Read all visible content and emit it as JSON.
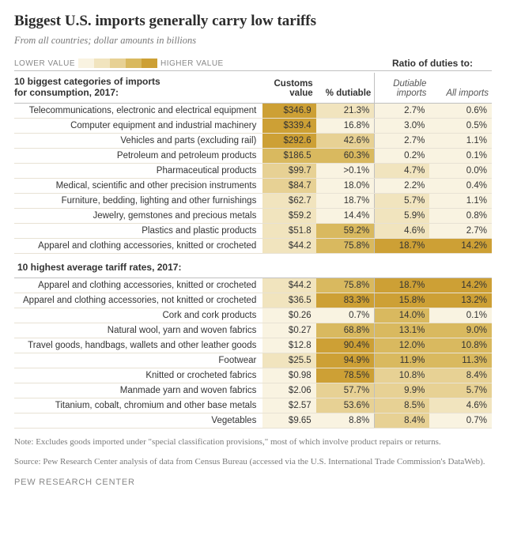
{
  "title": "Biggest U.S. imports generally carry low tariffs",
  "subtitle": "From all countries; dollar amounts in billions",
  "legend": {
    "low_label": "LOWER VALUE",
    "high_label": "HIGHER VALUE",
    "swatches": [
      "#f9f3e1",
      "#f1e4be",
      "#e7d194",
      "#d9b95f",
      "#cda035"
    ],
    "ratio_label": "Ratio of duties to:"
  },
  "columns": {
    "section1_label_a": "10 biggest categories of imports",
    "section1_label_b": "for consumption, 2017:",
    "customs_a": "Customs",
    "customs_b": "value",
    "dutiable": "% dutiable",
    "ratio_dutiable_a": "Dutiable",
    "ratio_dutiable_b": "imports",
    "ratio_all": "All imports",
    "section2_label": "10 highest average tariff rates, 2017:"
  },
  "widths": {
    "label": 280,
    "customs": 60,
    "dutiable": 66,
    "r1": 62,
    "r2": 70
  },
  "section1": [
    {
      "label": "Telecommunications, electronic and electrical equipment",
      "customs": "$346.9",
      "c_customs": "#cda035",
      "dutiable": "21.3%",
      "c_dutiable": "#f1e4be",
      "r1": "2.7%",
      "c_r1": "#f9f3e1",
      "r2": "0.6%",
      "c_r2": "#f9f3e1"
    },
    {
      "label": "Computer equipment and industrial machinery",
      "customs": "$339.4",
      "c_customs": "#cda035",
      "dutiable": "16.8%",
      "c_dutiable": "#f9f3e1",
      "r1": "3.0%",
      "c_r1": "#f9f3e1",
      "r2": "0.5%",
      "c_r2": "#f9f3e1"
    },
    {
      "label": "Vehicles and parts (excluding rail)",
      "customs": "$292.6",
      "c_customs": "#cda035",
      "dutiable": "42.6%",
      "c_dutiable": "#e7d194",
      "r1": "2.7%",
      "c_r1": "#f9f3e1",
      "r2": "1.1%",
      "c_r2": "#f9f3e1"
    },
    {
      "label": "Petroleum and petroleum products",
      "customs": "$186.5",
      "c_customs": "#d9b95f",
      "dutiable": "60.3%",
      "c_dutiable": "#d9b95f",
      "r1": "0.2%",
      "c_r1": "#f9f3e1",
      "r2": "0.1%",
      "c_r2": "#f9f3e1"
    },
    {
      "label": "Pharmaceutical products",
      "customs": "$99.7",
      "c_customs": "#e7d194",
      "dutiable": ">0.1%",
      "c_dutiable": "#f9f3e1",
      "r1": "4.7%",
      "c_r1": "#f1e4be",
      "r2": "0.0%",
      "c_r2": "#f9f3e1"
    },
    {
      "label": "Medical, scientific and other precision instruments",
      "customs": "$84.7",
      "c_customs": "#e7d194",
      "dutiable": "18.0%",
      "c_dutiable": "#f9f3e1",
      "r1": "2.2%",
      "c_r1": "#f9f3e1",
      "r2": "0.4%",
      "c_r2": "#f9f3e1"
    },
    {
      "label": "Furniture, bedding, lighting and other furnishings",
      "customs": "$62.7",
      "c_customs": "#f1e4be",
      "dutiable": "18.7%",
      "c_dutiable": "#f9f3e1",
      "r1": "5.7%",
      "c_r1": "#f1e4be",
      "r2": "1.1%",
      "c_r2": "#f9f3e1"
    },
    {
      "label": "Jewelry, gemstones and precious metals",
      "customs": "$59.2",
      "c_customs": "#f1e4be",
      "dutiable": "14.4%",
      "c_dutiable": "#f9f3e1",
      "r1": "5.9%",
      "c_r1": "#f1e4be",
      "r2": "0.8%",
      "c_r2": "#f9f3e1"
    },
    {
      "label": "Plastics and plastic products",
      "customs": "$51.8",
      "c_customs": "#f1e4be",
      "dutiable": "59.2%",
      "c_dutiable": "#d9b95f",
      "r1": "4.6%",
      "c_r1": "#f1e4be",
      "r2": "2.7%",
      "c_r2": "#f9f3e1"
    },
    {
      "label": "Apparel and clothing accessories, knitted or crocheted",
      "customs": "$44.2",
      "c_customs": "#f1e4be",
      "dutiable": "75.8%",
      "c_dutiable": "#d9b95f",
      "r1": "18.7%",
      "c_r1": "#cda035",
      "r2": "14.2%",
      "c_r2": "#cda035"
    }
  ],
  "section2": [
    {
      "label": "Apparel and clothing accessories, knitted or crocheted",
      "customs": "$44.2",
      "c_customs": "#f1e4be",
      "dutiable": "75.8%",
      "c_dutiable": "#d9b95f",
      "r1": "18.7%",
      "c_r1": "#cda035",
      "r2": "14.2%",
      "c_r2": "#cda035"
    },
    {
      "label": "Apparel and clothing accessories, not knitted or crocheted",
      "customs": "$36.5",
      "c_customs": "#f1e4be",
      "dutiable": "83.3%",
      "c_dutiable": "#cda035",
      "r1": "15.8%",
      "c_r1": "#cda035",
      "r2": "13.2%",
      "c_r2": "#cda035"
    },
    {
      "label": "Cork and cork products",
      "customs": "$0.26",
      "c_customs": "#f9f3e1",
      "dutiable": "0.7%",
      "c_dutiable": "#f9f3e1",
      "r1": "14.0%",
      "c_r1": "#d9b95f",
      "r2": "0.1%",
      "c_r2": "#f9f3e1"
    },
    {
      "label": "Natural wool, yarn and woven fabrics",
      "customs": "$0.27",
      "c_customs": "#f9f3e1",
      "dutiable": "68.8%",
      "c_dutiable": "#d9b95f",
      "r1": "13.1%",
      "c_r1": "#d9b95f",
      "r2": "9.0%",
      "c_r2": "#d9b95f"
    },
    {
      "label": "Travel goods, handbags, wallets and other leather goods",
      "customs": "$12.8",
      "c_customs": "#f9f3e1",
      "dutiable": "90.4%",
      "c_dutiable": "#cda035",
      "r1": "12.0%",
      "c_r1": "#d9b95f",
      "r2": "10.8%",
      "c_r2": "#d9b95f"
    },
    {
      "label": "Footwear",
      "customs": "$25.5",
      "c_customs": "#f1e4be",
      "dutiable": "94.9%",
      "c_dutiable": "#cda035",
      "r1": "11.9%",
      "c_r1": "#d9b95f",
      "r2": "11.3%",
      "c_r2": "#d9b95f"
    },
    {
      "label": "Knitted or crocheted fabrics",
      "customs": "$0.98",
      "c_customs": "#f9f3e1",
      "dutiable": "78.5%",
      "c_dutiable": "#cda035",
      "r1": "10.8%",
      "c_r1": "#e7d194",
      "r2": "8.4%",
      "c_r2": "#e7d194"
    },
    {
      "label": "Manmade yarn and woven fabrics",
      "customs": "$2.06",
      "c_customs": "#f9f3e1",
      "dutiable": "57.7%",
      "c_dutiable": "#e7d194",
      "r1": "9.9%",
      "c_r1": "#e7d194",
      "r2": "5.7%",
      "c_r2": "#e7d194"
    },
    {
      "label": "Titanium, cobalt, chromium and other base metals",
      "customs": "$2.57",
      "c_customs": "#f9f3e1",
      "dutiable": "53.6%",
      "c_dutiable": "#e7d194",
      "r1": "8.5%",
      "c_r1": "#e7d194",
      "r2": "4.6%",
      "c_r2": "#f1e4be"
    },
    {
      "label": "Vegetables",
      "customs": "$9.65",
      "c_customs": "#f9f3e1",
      "dutiable": "8.8%",
      "c_dutiable": "#f9f3e1",
      "r1": "8.4%",
      "c_r1": "#e7d194",
      "r2": "0.7%",
      "c_r2": "#f9f3e1"
    }
  ],
  "note": "Note: Excludes goods imported under \"special classification provisions,\" most of which involve product repairs or returns.",
  "source": "Source: Pew Research Center analysis of data from Census Bureau (accessed via the U.S. International Trade Commission's DataWeb).",
  "attribution": "PEW RESEARCH CENTER"
}
